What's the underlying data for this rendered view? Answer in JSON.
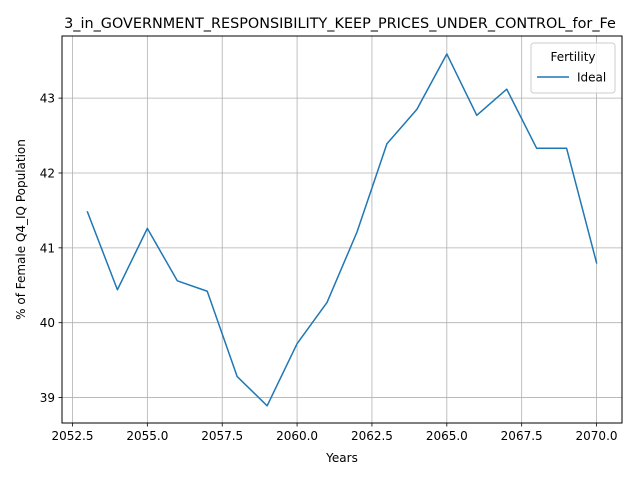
{
  "chart_data": {
    "type": "line",
    "title": "3_in_GOVERNMENT_RESPONSIBILITY_KEEP_PRICES_UNDER_CONTROL_for_Fe",
    "xlabel": "Years",
    "ylabel": "% of Female Q4_IQ Population",
    "xlim": [
      2052.15,
      2070.85
    ],
    "ylim": [
      38.66,
      43.83
    ],
    "xticks": [
      "2052.5",
      "2055.0",
      "2057.5",
      "2060.0",
      "2062.5",
      "2065.0",
      "2067.5",
      "2070.0"
    ],
    "xtick_values": [
      2052.5,
      2055.0,
      2057.5,
      2060.0,
      2062.5,
      2065.0,
      2067.5,
      2070.0
    ],
    "yticks": [
      "39",
      "40",
      "41",
      "42",
      "43"
    ],
    "ytick_values": [
      39,
      40,
      41,
      42,
      43
    ],
    "grid": true,
    "legend": {
      "title": "Fertility",
      "placement": "top-right"
    },
    "series": [
      {
        "name": "Ideal",
        "color": "#1f77b4",
        "x": [
          2053,
          2054,
          2055,
          2056,
          2057,
          2058,
          2059,
          2060,
          2061,
          2062,
          2063,
          2064,
          2065,
          2066,
          2067,
          2068,
          2069,
          2070
        ],
        "y": [
          41.48,
          40.44,
          41.26,
          40.56,
          40.42,
          39.28,
          38.89,
          39.72,
          40.27,
          41.21,
          42.39,
          42.85,
          43.59,
          42.77,
          43.12,
          42.33,
          42.33,
          40.8
        ]
      }
    ]
  }
}
